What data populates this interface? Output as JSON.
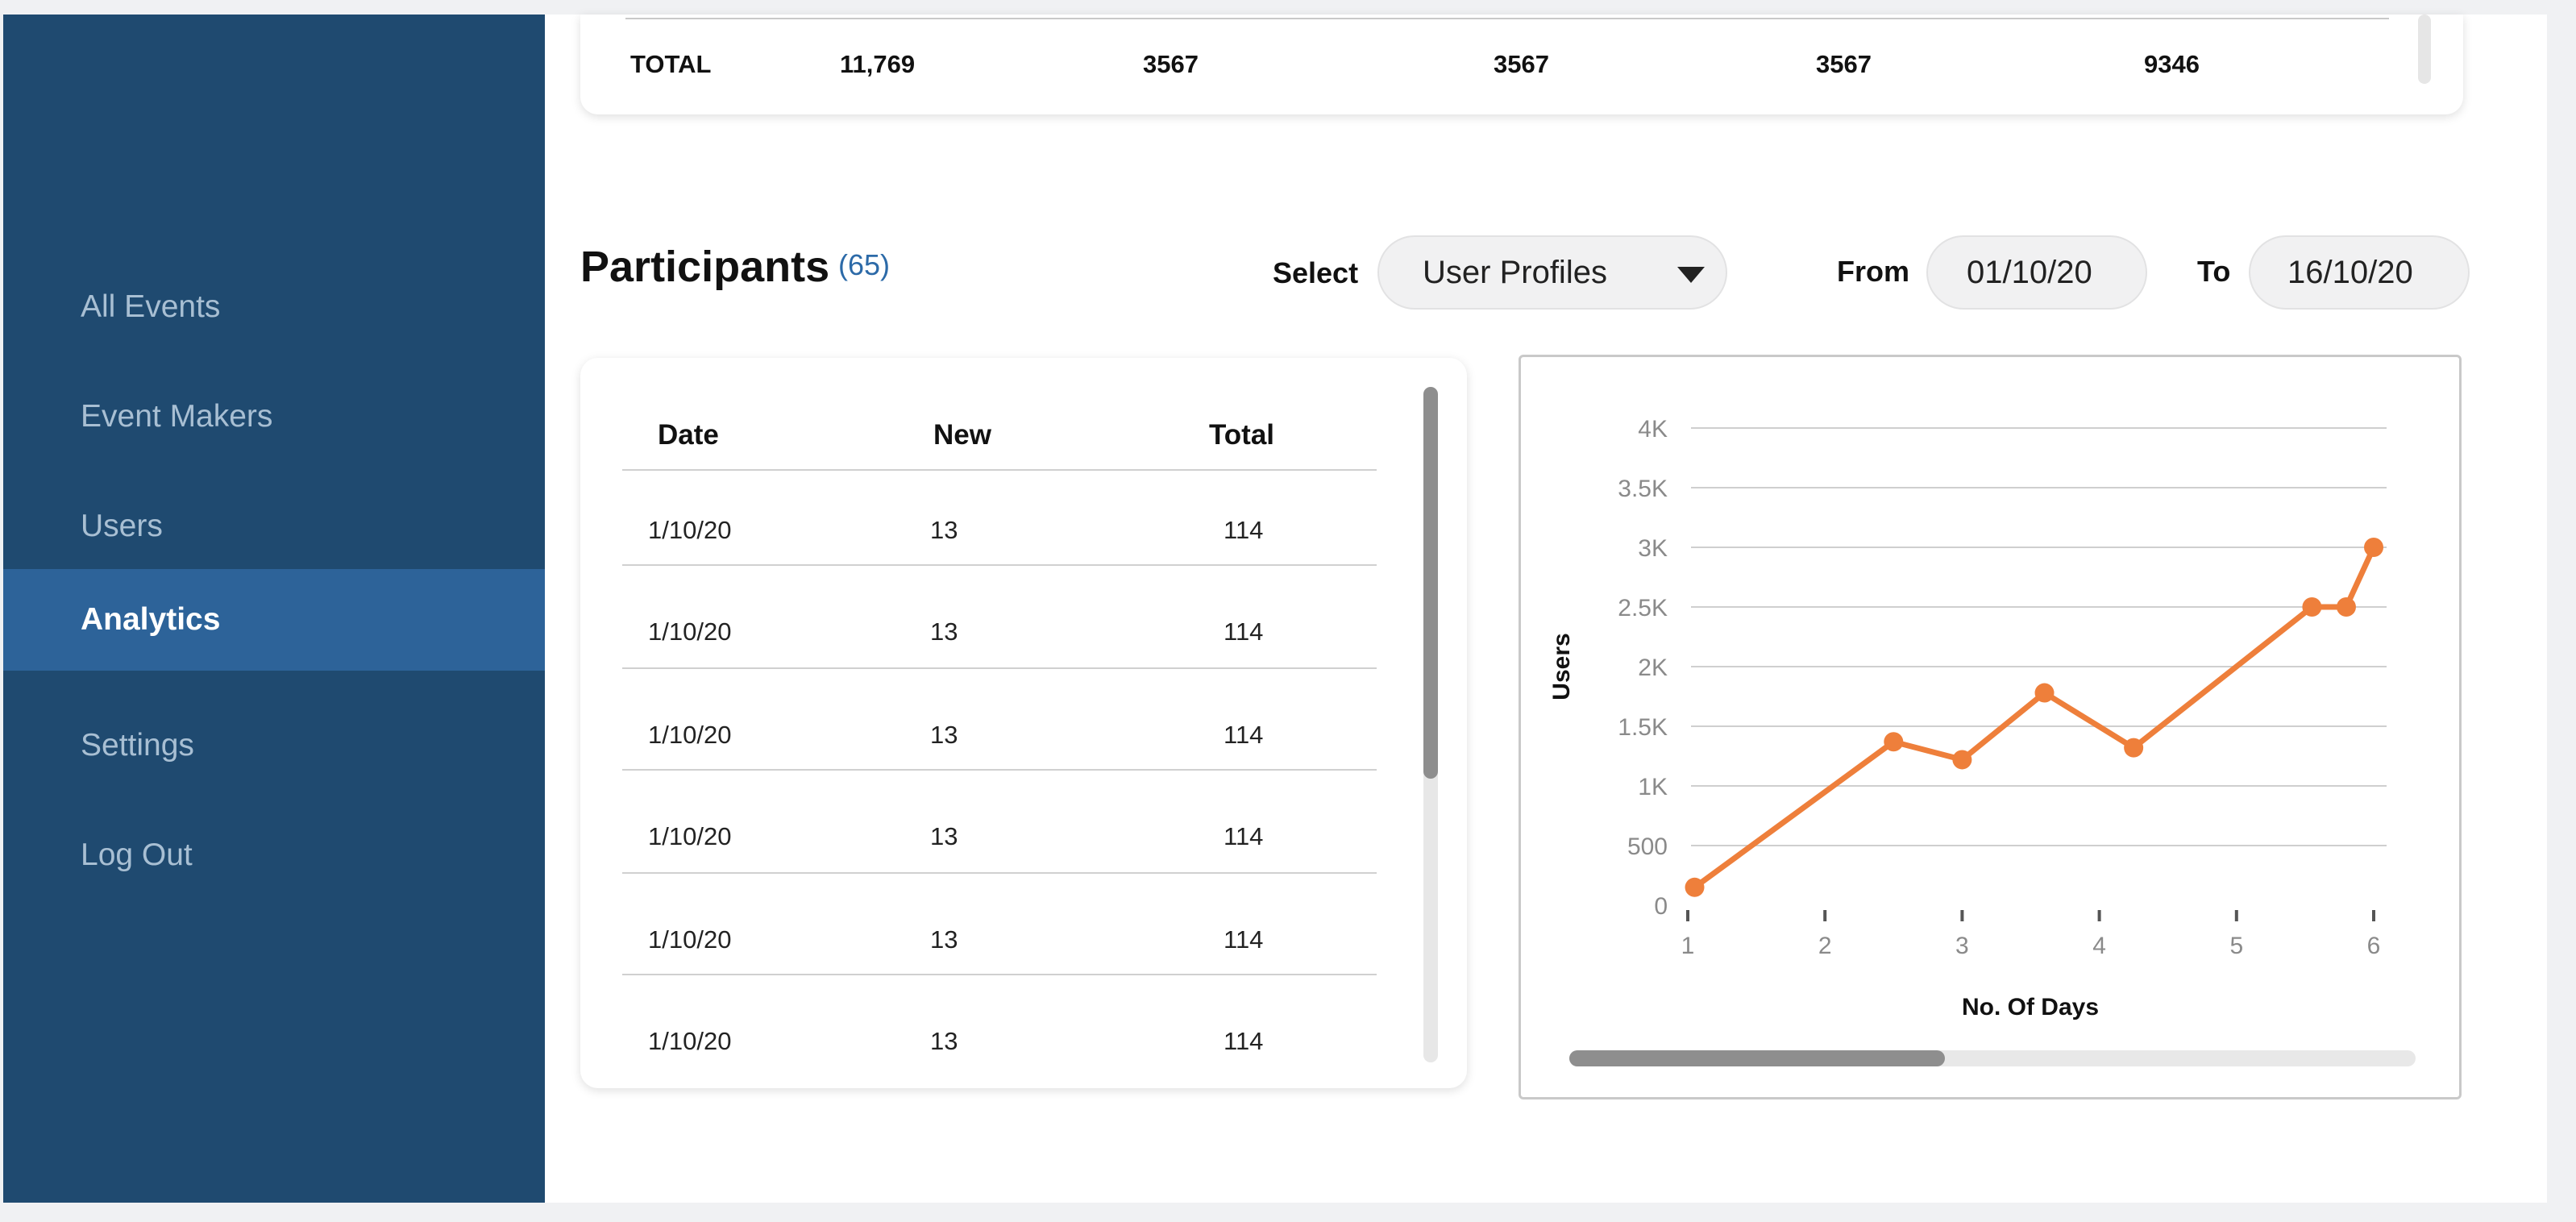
{
  "sidebar": {
    "items": [
      {
        "label": "All Events"
      },
      {
        "label": "Event Makers"
      },
      {
        "label": "Users"
      },
      {
        "label": "Analytics"
      },
      {
        "label": "Settings"
      },
      {
        "label": "Log Out"
      }
    ],
    "active": "Analytics"
  },
  "totals_row": {
    "label": "TOTAL",
    "values": [
      "11,769",
      "3567",
      "3567",
      "3567",
      "9346"
    ]
  },
  "participants": {
    "title": "Participants",
    "count": "(65)",
    "select_label": "Select",
    "select_value": "User Profiles",
    "from_label": "From",
    "from_value": "01/10/20",
    "to_label": "To",
    "to_value": "16/10/20"
  },
  "table": {
    "headers": [
      "Date",
      "New",
      "Total"
    ],
    "rows": [
      [
        "1/10/20",
        "13",
        "114"
      ],
      [
        "1/10/20",
        "13",
        "114"
      ],
      [
        "1/10/20",
        "13",
        "114"
      ],
      [
        "1/10/20",
        "13",
        "114"
      ],
      [
        "1/10/20",
        "13",
        "114"
      ],
      [
        "1/10/20",
        "13",
        "114"
      ]
    ]
  },
  "colors": {
    "sidebar_bg": "#1f4a70",
    "sidebar_active": "#2d6399",
    "line": "#ee7f3b",
    "accent_count": "#2c6aa8"
  },
  "chart_data": {
    "type": "line",
    "xlabel": "No. Of Days",
    "ylabel": "Users",
    "x_ticks": [
      "1",
      "2",
      "3",
      "4",
      "5",
      "6"
    ],
    "y_ticks": [
      "0",
      "500",
      "1K",
      "1.5K",
      "2K",
      "2.5K",
      "3K",
      "3.5K",
      "4K"
    ],
    "xlim": [
      1,
      6
    ],
    "ylim": [
      0,
      4000
    ],
    "grid": true,
    "series": [
      {
        "x": [
          1.05,
          2.5,
          3.0,
          3.6,
          4.25,
          5.55,
          5.8,
          6.0
        ],
        "y": [
          150,
          1370,
          1220,
          1780,
          1320,
          2500,
          2500,
          3000
        ]
      }
    ]
  }
}
